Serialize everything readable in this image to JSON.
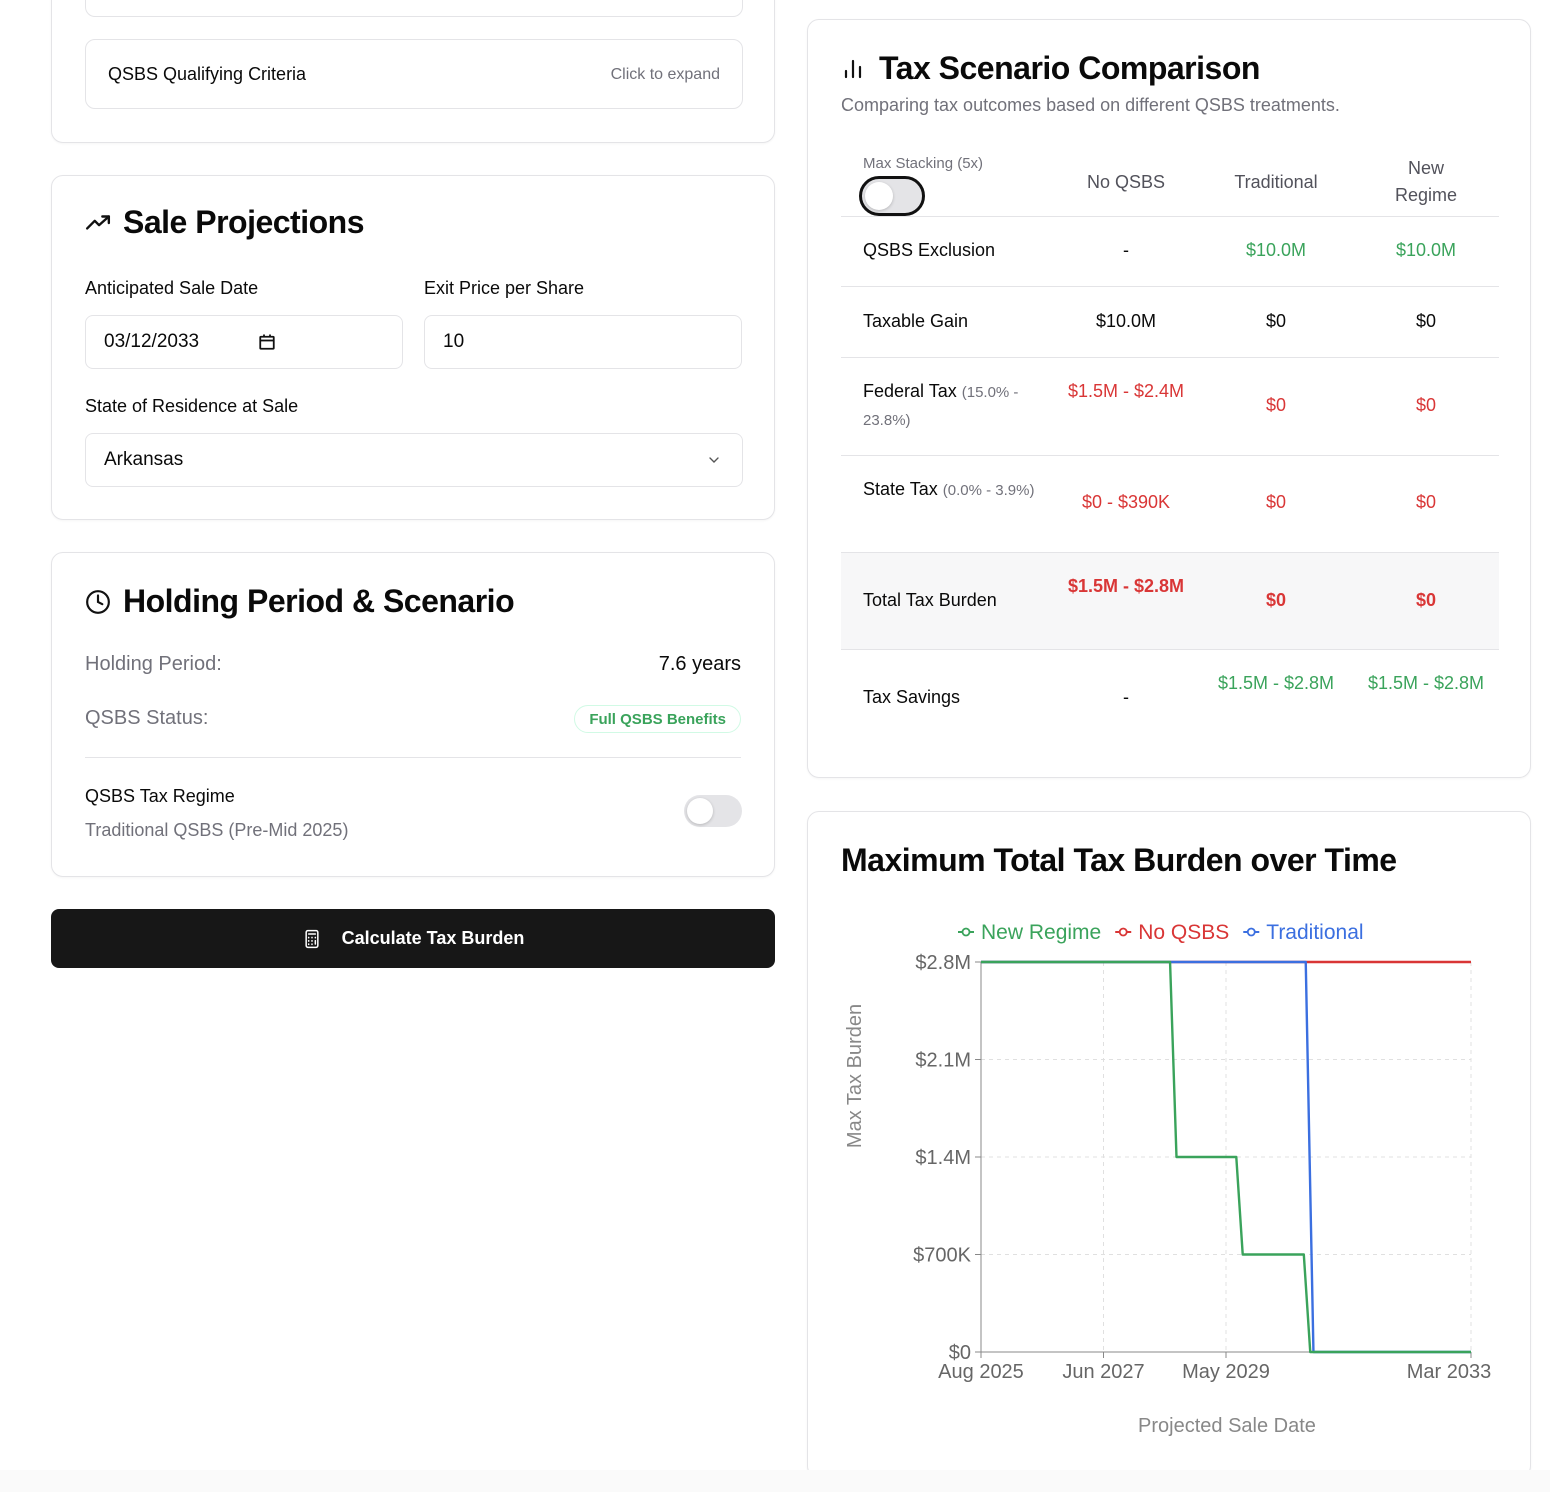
{
  "qualifying": {
    "label": "QSBS Qualifying Criteria",
    "hint": "Click to expand"
  },
  "sale": {
    "title": "Sale Projections",
    "date_label": "Anticipated Sale Date",
    "date_value": "03/12/2033",
    "price_label": "Exit Price per Share",
    "price_value": "10",
    "state_label": "State of Residence at Sale",
    "state_value": "Arkansas"
  },
  "holding": {
    "title": "Holding Period & Scenario",
    "period_label": "Holding Period:",
    "period_value": "7.6 years",
    "status_label": "QSBS Status:",
    "status_badge": "Full QSBS Benefits",
    "regime_title": "QSBS Tax Regime",
    "regime_sub": "Traditional QSBS (Pre-Mid 2025)"
  },
  "button": {
    "calculate": "Calculate Tax Burden"
  },
  "comparison": {
    "title": "Tax Scenario Comparison",
    "subtitle": "Comparing tax outcomes based on different QSBS treatments.",
    "stacking_label": "Max Stacking (5x)",
    "columns": [
      "No QSBS",
      "Traditional",
      "New\nRegime"
    ],
    "rows": [
      {
        "label": "QSBS Exclusion",
        "note": "",
        "values": [
          "-",
          "$10.0M",
          "$10.0M"
        ]
      },
      {
        "label": "Taxable Gain",
        "note": "",
        "values": [
          "$10.0M",
          "$0",
          "$0"
        ]
      },
      {
        "label": "Federal Tax",
        "note": "(15.0% - 23.8%)",
        "values": [
          "$1.5M - $2.4M",
          "$0",
          "$0"
        ]
      },
      {
        "label": "State Tax",
        "note": "(0.0% - 3.9%)",
        "values": [
          "$0 - $390K",
          "$0",
          "$0"
        ]
      },
      {
        "label": "Total Tax Burden",
        "note": "",
        "values": [
          "$1.5M - $2.8M",
          "$0",
          "$0"
        ]
      },
      {
        "label": "Tax Savings",
        "note": "",
        "values": [
          "-",
          "$1.5M - $2.8M",
          "$1.5M - $2.8M"
        ]
      }
    ]
  },
  "colors": {
    "green": "#3aa35b",
    "red": "#d93636",
    "blue": "#3b6fe0",
    "dark": "#171717"
  },
  "chart_data": {
    "type": "line",
    "title": "Maximum Total Tax Burden over Time",
    "xlabel": "Projected Sale Date",
    "ylabel": "Max Tax Burden",
    "x_ticks": [
      "Aug 2025",
      "Jun 2027",
      "May 2029",
      "Mar 2033"
    ],
    "y_ticks": [
      "$0",
      "$700K",
      "$1.4M",
      "$2.1M",
      "$2.8M"
    ],
    "xlim": [
      2025.58,
      2033.2
    ],
    "ylim": [
      0,
      2.8
    ],
    "legend": [
      "New Regime",
      "No QSBS",
      "Traditional"
    ],
    "series": [
      {
        "name": "No QSBS",
        "color": "#d93636",
        "x": [
          2025.58,
          2033.2
        ],
        "y": [
          2.8,
          2.8
        ]
      },
      {
        "name": "Traditional",
        "color": "#3b6fe0",
        "x": [
          2025.58,
          2030.63,
          2030.75,
          2033.2
        ],
        "y": [
          2.8,
          2.8,
          0,
          0
        ]
      },
      {
        "name": "New Regime",
        "color": "#3aa35b",
        "x": [
          2025.58,
          2028.52,
          2028.62,
          2029.55,
          2029.65,
          2030.6,
          2030.7,
          2033.2
        ],
        "y": [
          2.8,
          2.8,
          1.4,
          1.4,
          0.7,
          0.7,
          0,
          0
        ]
      }
    ]
  }
}
